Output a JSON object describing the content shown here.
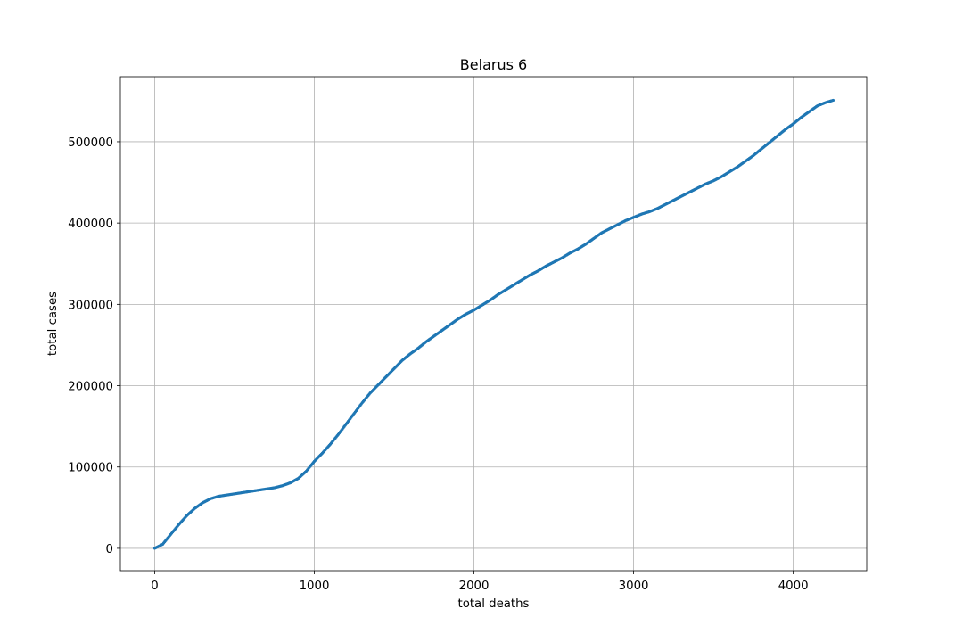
{
  "chart_data": {
    "type": "scatter",
    "title": "Belarus 6",
    "xlabel": "total deaths",
    "ylabel": "total cases",
    "xlim": [
      -215,
      4460
    ],
    "ylim": [
      -27500,
      580000
    ],
    "xticks": [
      0,
      1000,
      2000,
      3000,
      4000
    ],
    "xtick_labels": [
      "0",
      "1000",
      "2000",
      "3000",
      "4000"
    ],
    "yticks": [
      0,
      100000,
      200000,
      300000,
      400000,
      500000
    ],
    "ytick_labels": [
      "0",
      "100000",
      "200000",
      "300000",
      "400000",
      "500000"
    ],
    "grid": true,
    "marker_color": "#1f77b4",
    "series": [
      {
        "x": [
          0,
          50,
          100,
          150,
          200,
          250,
          300,
          350,
          400,
          450,
          500,
          550,
          600,
          650,
          700,
          750,
          800,
          850,
          900,
          950,
          1000,
          1050,
          1100,
          1150,
          1200,
          1250,
          1300,
          1350,
          1400,
          1450,
          1500,
          1550,
          1600,
          1650,
          1700,
          1750,
          1800,
          1850,
          1900,
          1950,
          2000,
          2050,
          2100,
          2150,
          2200,
          2250,
          2300,
          2350,
          2400,
          2450,
          2500,
          2550,
          2600,
          2650,
          2700,
          2750,
          2800,
          2850,
          2900,
          2950,
          3000,
          3050,
          3100,
          3150,
          3200,
          3250,
          3300,
          3350,
          3400,
          3450,
          3500,
          3550,
          3600,
          3650,
          3700,
          3750,
          3800,
          3850,
          3900,
          3950,
          4000,
          4050,
          4100,
          4150,
          4200,
          4250
        ],
        "y": [
          0,
          5000,
          17000,
          29000,
          40000,
          49000,
          56000,
          61000,
          64000,
          65500,
          67000,
          68500,
          70000,
          71500,
          73000,
          74500,
          77000,
          80500,
          86000,
          95000,
          107000,
          117000,
          128000,
          140000,
          153000,
          166000,
          179000,
          191000,
          201000,
          211000,
          221000,
          231000,
          239000,
          246000,
          254000,
          261000,
          268000,
          275000,
          282000,
          288000,
          293000,
          299000,
          305000,
          312000,
          318000,
          324000,
          330000,
          336000,
          341000,
          347000,
          352000,
          357000,
          363000,
          368000,
          374000,
          381000,
          388000,
          393000,
          398000,
          403000,
          407000,
          411000,
          414000,
          418000,
          423000,
          428000,
          433000,
          438000,
          443000,
          448000,
          452000,
          457000,
          463000,
          469000,
          476000,
          483000,
          491000,
          499000,
          507000,
          515000,
          522000,
          530000,
          537000,
          544000,
          548000,
          551000
        ]
      }
    ]
  }
}
